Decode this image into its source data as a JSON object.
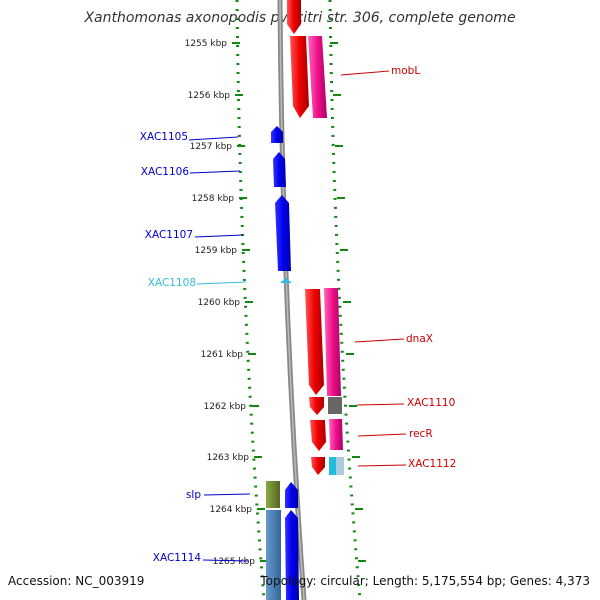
{
  "title": "Xanthomonas axonopodis pv. citri str. 306, complete genome",
  "footer": {
    "accession": "Accession: NC_003919",
    "topology": "Topology: circular; Length: 5,175,554 bp; Genes: 4,373"
  },
  "ticks": [
    "1255 kbp",
    "1256 kbp",
    "1257 kbp",
    "1258 kbp",
    "1259 kbp",
    "1260 kbp",
    "1261 kbp",
    "1262 kbp",
    "1263 kbp",
    "1264 kbp",
    "1265 kbp"
  ],
  "gene_labels": {
    "left": [
      {
        "text": "XAC1105",
        "color": "#0000cc"
      },
      {
        "text": "XAC1106",
        "color": "#0000cc"
      },
      {
        "text": "XAC1107",
        "color": "#0000cc"
      },
      {
        "text": "XAC1108",
        "color": "#33bbdd"
      },
      {
        "text": "slp",
        "color": "#0000cc"
      },
      {
        "text": "XAC1114",
        "color": "#0000cc"
      }
    ],
    "right": [
      {
        "text": "mobL",
        "color": "#cc0000"
      },
      {
        "text": "dnaX",
        "color": "#cc0000"
      },
      {
        "text": "XAC1110",
        "color": "#cc0000"
      },
      {
        "text": "recR",
        "color": "#cc0000"
      },
      {
        "text": "XAC1112",
        "color": "#cc0000"
      }
    ]
  },
  "colors": {
    "forward_strand": "#0000ee",
    "reverse_strand": "#ee0000",
    "cog_magenta": "#ee1188",
    "tick_green": "#118811",
    "backbone": "#888888"
  }
}
